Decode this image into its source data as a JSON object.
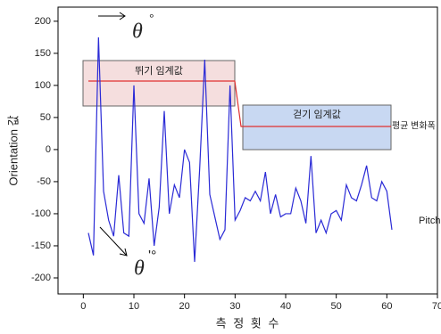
{
  "chart_data": {
    "type": "line",
    "x_label": "측 정 횟 수",
    "y_label": "Orientation 값",
    "x": [
      1,
      2,
      3,
      4,
      5,
      6,
      7,
      8,
      9,
      10,
      11,
      12,
      13,
      14,
      15,
      16,
      17,
      18,
      19,
      20,
      21,
      22,
      23,
      24,
      25,
      26,
      27,
      28,
      29,
      30,
      31,
      32,
      33,
      34,
      35,
      36,
      37,
      38,
      39,
      40,
      41,
      42,
      43,
      44,
      45,
      46,
      47,
      48,
      49,
      50,
      51,
      52,
      53,
      54,
      55,
      56,
      57,
      58,
      59,
      60,
      61
    ],
    "series": [
      {
        "name": "Pitch",
        "color": "#2a2ad6",
        "values": [
          -130,
          -165,
          175,
          -65,
          -110,
          -135,
          -40,
          -130,
          -135,
          100,
          -100,
          -115,
          -45,
          -150,
          -90,
          60,
          -100,
          -55,
          -75,
          0,
          -20,
          -175,
          -30,
          140,
          -70,
          -105,
          -140,
          -125,
          100,
          -110,
          -95,
          -75,
          -80,
          -65,
          -80,
          -35,
          -100,
          -70,
          -105,
          -100,
          -100,
          -60,
          -80,
          -115,
          -10,
          -130,
          -110,
          -130,
          -100,
          -95,
          -110,
          -55,
          -75,
          -80,
          -55,
          -25,
          -75,
          -80,
          -50,
          -65,
          -125
        ]
      }
    ],
    "xlim": [
      -5,
      70
    ],
    "xticks": [
      0,
      10,
      20,
      30,
      40,
      50,
      60,
      70
    ],
    "ylim": [
      -225,
      222
    ],
    "yticks": [
      -200,
      -150,
      -100,
      -50,
      0,
      50,
      100,
      150,
      200
    ],
    "annotations": {
      "run_threshold": "뛰기 임계값",
      "walk_threshold": "걷기 임계값",
      "mean_change": "평균 변화폭",
      "theta_top": "θ",
      "deg_top": "°",
      "theta_bottom": "θ",
      "prime_deg_bottom": "'°"
    }
  }
}
